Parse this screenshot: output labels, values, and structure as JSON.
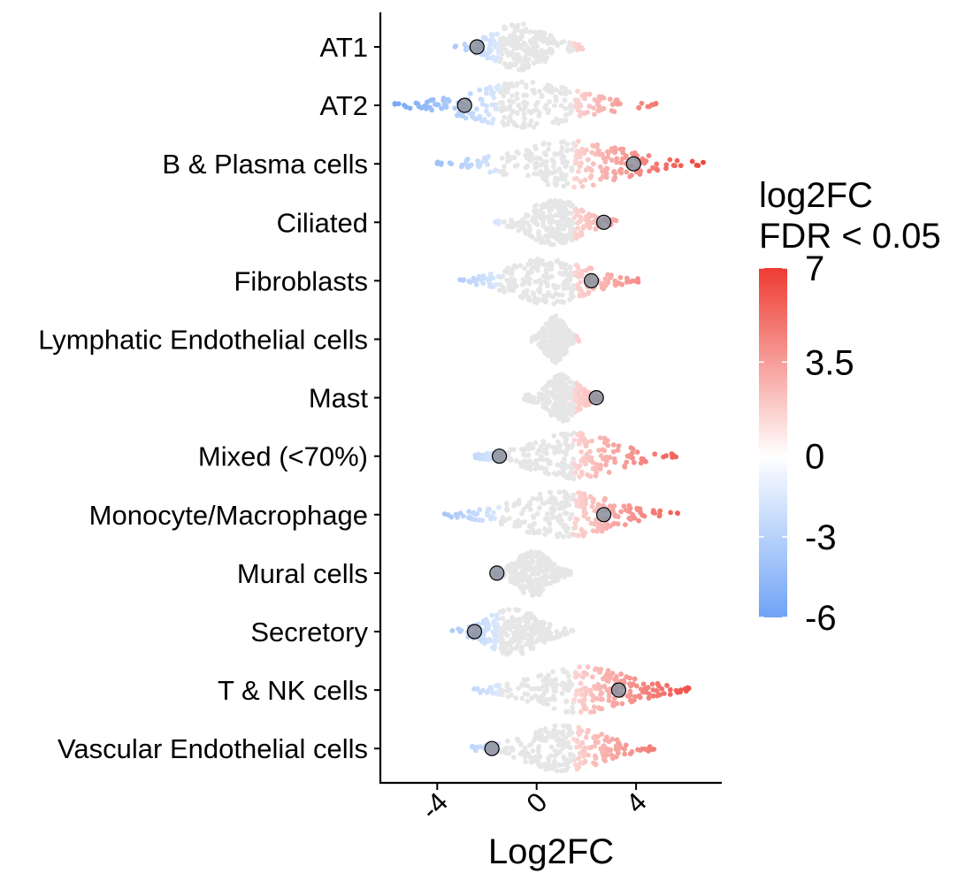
{
  "chart_data": {
    "type": "scatter",
    "subtype": "beeswarm",
    "x_label": "Log2FC",
    "xlim": [
      -5.7,
      7.3
    ],
    "x_ticks": [
      -4,
      0,
      4
    ],
    "x_tick_labels": [
      "-4",
      "0",
      "4"
    ],
    "categories": [
      "AT1",
      "AT2",
      "B & Plasma cells",
      "Ciliated",
      "Fibroblasts",
      "Lymphatic Endothelial cells",
      "Mast",
      "Mixed (<70%)",
      "Monocyte/Macrophage",
      "Mural cells",
      "Secretory",
      "T & NK cells",
      "Vascular Endothelial cells"
    ],
    "distributions": [
      {
        "category": "AT1",
        "min": -3.3,
        "max": 1.9,
        "median": -2.4
      },
      {
        "category": "AT2",
        "min": -5.7,
        "max": 4.8,
        "median": -2.9
      },
      {
        "category": "B & Plasma cells",
        "min": -4.0,
        "max": 6.7,
        "median": 3.9
      },
      {
        "category": "Ciliated",
        "min": -1.7,
        "max": 3.2,
        "median": 2.7
      },
      {
        "category": "Fibroblasts",
        "min": -3.1,
        "max": 4.1,
        "median": 2.2
      },
      {
        "category": "Lymphatic Endothelial cells",
        "min": -0.2,
        "max": 1.7,
        "median": null
      },
      {
        "category": "Mast",
        "min": -0.5,
        "max": 2.6,
        "median": 2.4
      },
      {
        "category": "Mixed (<70%)",
        "min": -2.5,
        "max": 5.6,
        "median": -1.5
      },
      {
        "category": "Monocyte/Macrophage",
        "min": -3.7,
        "max": 5.8,
        "median": 2.7
      },
      {
        "category": "Mural cells",
        "min": -1.7,
        "max": 1.4,
        "median": -1.6
      },
      {
        "category": "Secretory",
        "min": -3.4,
        "max": 1.5,
        "median": -2.5
      },
      {
        "category": "T & NK cells",
        "min": -2.6,
        "max": 6.3,
        "median": 3.3
      },
      {
        "category": "Vascular Endothelial cells",
        "min": -2.6,
        "max": 4.8,
        "median": -1.8
      }
    ],
    "legend": {
      "title_line1": "log2FC",
      "title_line2": "FDR < 0.05",
      "labels": [
        "7",
        "3.5",
        "0",
        "-3",
        "-6"
      ],
      "values": [
        7,
        3.5,
        0,
        -3,
        -6
      ],
      "min": -6,
      "max": 7,
      "color_low": "#6fa3f5",
      "color_mid": "#ffffff",
      "color_high": "#ee3b32",
      "nonsignificant_color": "#e6e6e6"
    },
    "median_marker_color": "#8a8f9c",
    "grid": false
  }
}
